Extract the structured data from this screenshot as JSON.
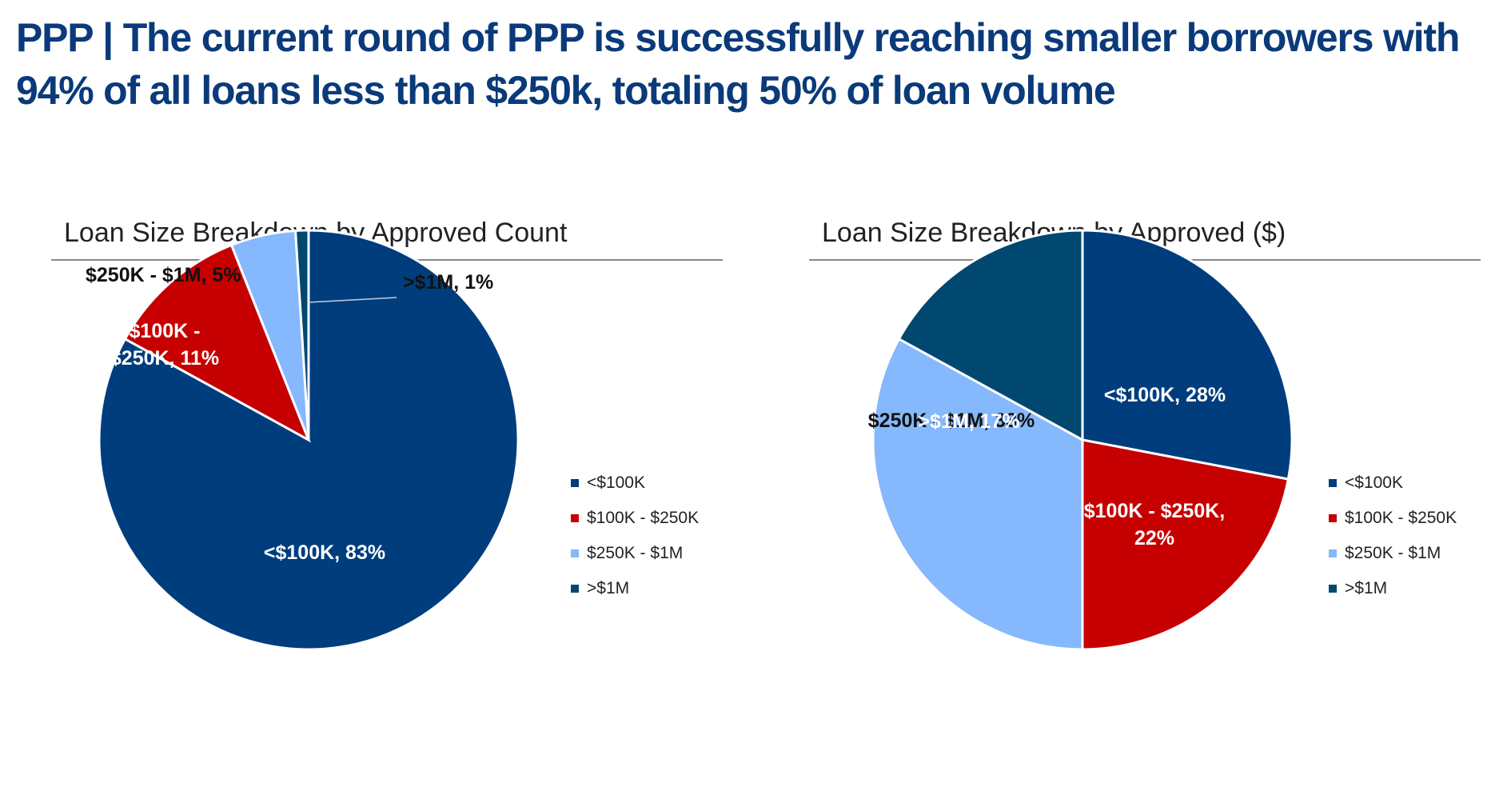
{
  "headline": "PPP | The current round of PPP is successfully reaching smaller borrowers with 94% of all loans less than $250k, totaling 50% of loan volume",
  "colors": {
    "headline": "#0a3a7a",
    "series": [
      "#003d7d",
      "#c60000",
      "#85b8fc",
      "#004870"
    ]
  },
  "chart_data": [
    {
      "type": "pie",
      "title": "Loan Size Breakdown by Approved Count",
      "categories": [
        "<$100K",
        "$100K - $250K",
        "$250K - $1M",
        ">$1M"
      ],
      "values": [
        83,
        11,
        5,
        1
      ],
      "data_labels": [
        "<$100K, 83%",
        "$100K - $250K, 11%",
        "$250K - $1M, 5%",
        ">$1M, 1%"
      ],
      "legend_position": "right"
    },
    {
      "type": "pie",
      "title": "Loan Size Breakdown by Approved ($)",
      "categories": [
        "<$100K",
        "$100K - $250K",
        "$250K - $1M",
        ">$1M"
      ],
      "values": [
        28,
        22,
        33,
        17
      ],
      "data_labels": [
        "<$100K, 28%",
        "$100K - $250K, 22%",
        "$250K - $1M, 33%",
        ">$1M, 17%"
      ],
      "legend_position": "right"
    }
  ]
}
